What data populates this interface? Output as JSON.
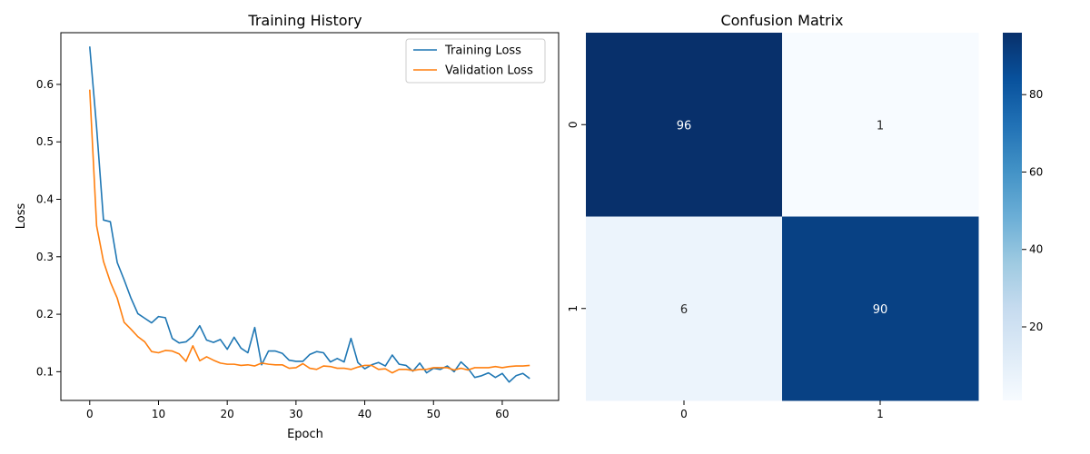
{
  "chart_data": [
    {
      "type": "line",
      "title": "Training History",
      "xlabel": "Epoch",
      "ylabel": "Loss",
      "xlim": [
        -4.2,
        68.2
      ],
      "ylim": [
        0.05,
        0.69
      ],
      "xticks": [
        0,
        10,
        20,
        30,
        40,
        50,
        60
      ],
      "yticks": [
        0.1,
        0.2,
        0.3,
        0.4,
        0.5,
        0.6
      ],
      "legend_position": "top-right",
      "grid": false,
      "x": [
        0,
        1,
        2,
        3,
        4,
        5,
        6,
        7,
        8,
        9,
        10,
        11,
        12,
        13,
        14,
        15,
        16,
        17,
        18,
        19,
        20,
        21,
        22,
        23,
        24,
        25,
        26,
        27,
        28,
        29,
        30,
        31,
        32,
        33,
        34,
        35,
        36,
        37,
        38,
        39,
        40,
        41,
        42,
        43,
        44,
        45,
        46,
        47,
        48,
        49,
        50,
        51,
        52,
        53,
        54,
        55,
        56,
        57,
        58,
        59,
        60,
        61,
        62,
        63,
        64
      ],
      "series": [
        {
          "name": "Training Loss",
          "color": "#1f77b4",
          "values": [
            0.666,
            0.525,
            0.364,
            0.361,
            0.29,
            0.26,
            0.228,
            0.201,
            0.193,
            0.185,
            0.196,
            0.194,
            0.158,
            0.15,
            0.152,
            0.162,
            0.18,
            0.155,
            0.151,
            0.156,
            0.139,
            0.16,
            0.141,
            0.133,
            0.177,
            0.112,
            0.136,
            0.136,
            0.132,
            0.12,
            0.118,
            0.118,
            0.13,
            0.135,
            0.133,
            0.117,
            0.123,
            0.117,
            0.158,
            0.116,
            0.105,
            0.112,
            0.116,
            0.11,
            0.129,
            0.113,
            0.111,
            0.101,
            0.115,
            0.098,
            0.106,
            0.104,
            0.11,
            0.1,
            0.117,
            0.106,
            0.09,
            0.093,
            0.098,
            0.09,
            0.097,
            0.082,
            0.093,
            0.097,
            0.088
          ]
        },
        {
          "name": "Validation Loss",
          "color": "#ff7f0e",
          "values": [
            0.591,
            0.354,
            0.292,
            0.256,
            0.228,
            0.186,
            0.174,
            0.161,
            0.152,
            0.135,
            0.133,
            0.137,
            0.136,
            0.131,
            0.118,
            0.145,
            0.119,
            0.126,
            0.12,
            0.115,
            0.113,
            0.113,
            0.111,
            0.112,
            0.11,
            0.115,
            0.113,
            0.112,
            0.112,
            0.106,
            0.107,
            0.114,
            0.106,
            0.104,
            0.11,
            0.109,
            0.106,
            0.106,
            0.104,
            0.108,
            0.111,
            0.111,
            0.104,
            0.105,
            0.098,
            0.104,
            0.104,
            0.102,
            0.104,
            0.104,
            0.107,
            0.107,
            0.107,
            0.103,
            0.106,
            0.103,
            0.107,
            0.107,
            0.107,
            0.109,
            0.107,
            0.109,
            0.11,
            0.11,
            0.111
          ]
        }
      ]
    },
    {
      "type": "heatmap",
      "title": "Confusion Matrix",
      "xlabel": "",
      "ylabel": "",
      "row_labels": [
        "0",
        "1"
      ],
      "col_labels": [
        "0",
        "1"
      ],
      "values": [
        [
          96,
          1
        ],
        [
          6,
          90
        ]
      ],
      "colormap": "Blues",
      "colorbar": {
        "min": 1,
        "max": 96,
        "ticks": [
          20,
          40,
          60,
          80
        ]
      }
    }
  ]
}
